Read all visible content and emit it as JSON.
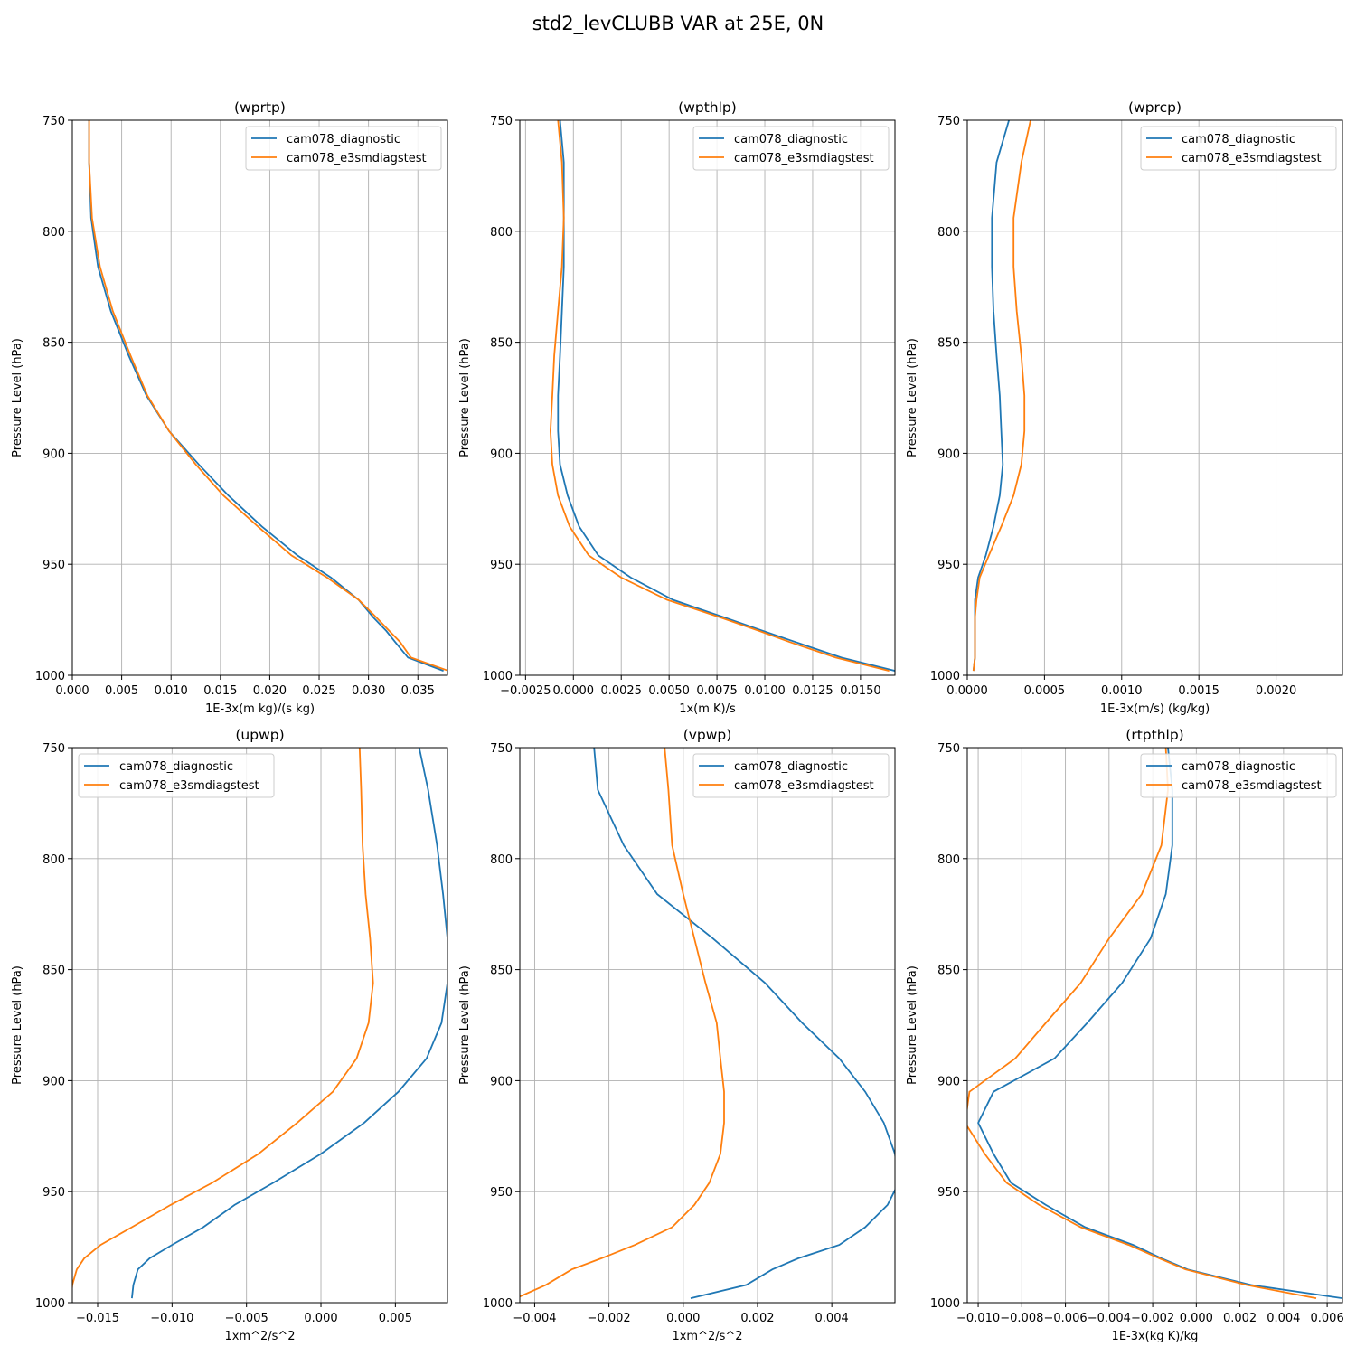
{
  "figure": {
    "title": "std2_levCLUBB VAR at 25E, 0N"
  },
  "colors": {
    "series0": "#1f77b4",
    "series1": "#ff7f0e",
    "grid": "#b0b0b0"
  },
  "chart_data": [
    {
      "type": "line",
      "title": "(wprtp)",
      "xlabel": "1E-3x(m kg)/(s kg)",
      "ylabel": "Pressure Level (hPa)",
      "xlim": [
        0,
        0.038
      ],
      "ylim": [
        1000,
        750
      ],
      "xticks": [
        0,
        0.005,
        0.01,
        0.015,
        0.02,
        0.025,
        0.03,
        0.035
      ],
      "xtick_labels": [
        "0.000",
        "0.005",
        "0.010",
        "0.015",
        "0.020",
        "0.025",
        "0.030",
        "0.035"
      ],
      "yticks": [
        750,
        800,
        850,
        900,
        950,
        1000
      ],
      "ytick_labels": [
        "750",
        "800",
        "850",
        "900",
        "950",
        "1000"
      ],
      "grid": true,
      "legend": "top-right",
      "y": [
        750,
        769,
        794,
        816,
        836,
        856,
        874,
        890,
        905,
        919,
        933,
        946,
        956,
        966,
        974,
        980,
        985,
        992,
        998
      ],
      "series": [
        {
          "name": "cam078_diagnostic",
          "values": [
            0.0017,
            0.0017,
            0.0019,
            0.0026,
            0.0039,
            0.0057,
            0.0075,
            0.0098,
            0.0128,
            0.0158,
            0.0192,
            0.0228,
            0.0262,
            0.029,
            0.0305,
            0.0318,
            0.0327,
            0.034,
            0.0376
          ]
        },
        {
          "name": "cam078_e3smdiagstest",
          "values": [
            0.0017,
            0.0017,
            0.002,
            0.0028,
            0.0041,
            0.0059,
            0.0076,
            0.0098,
            0.0125,
            0.0153,
            0.0188,
            0.0222,
            0.0258,
            0.029,
            0.0308,
            0.0321,
            0.0332,
            0.0343,
            0.0381
          ]
        }
      ]
    },
    {
      "type": "line",
      "title": "(wpthlp)",
      "xlabel": "1x(m K)/s",
      "ylabel": "Pressure Level (hPa)",
      "xlim": [
        -0.0028,
        0.0168
      ],
      "ylim": [
        1000,
        750
      ],
      "xticks": [
        -0.0025,
        0.0,
        0.0025,
        0.005,
        0.0075,
        0.01,
        0.0125,
        0.015
      ],
      "xtick_labels": [
        "−0.0025",
        "0.0000",
        "0.0025",
        "0.0050",
        "0.0075",
        "0.0100",
        "0.0125",
        "0.0150"
      ],
      "yticks": [
        750,
        800,
        850,
        900,
        950,
        1000
      ],
      "ytick_labels": [
        "750",
        "800",
        "850",
        "900",
        "950",
        "1000"
      ],
      "grid": true,
      "legend": "top-right",
      "y": [
        750,
        769,
        794,
        816,
        836,
        856,
        874,
        890,
        905,
        919,
        933,
        946,
        956,
        966,
        974,
        980,
        985,
        992,
        998
      ],
      "series": [
        {
          "name": "cam078_diagnostic",
          "values": [
            -0.0007,
            -0.0005,
            -0.0005,
            -0.0005,
            -0.0006,
            -0.0007,
            -0.0008,
            -0.0008,
            -0.0007,
            -0.0003,
            0.0003,
            0.0013,
            0.003,
            0.0052,
            0.0079,
            0.0099,
            0.0116,
            0.014,
            0.0168
          ]
        },
        {
          "name": "cam078_e3smdiagstest",
          "values": [
            -0.0008,
            -0.0006,
            -0.0005,
            -0.0006,
            -0.0008,
            -0.001,
            -0.0011,
            -0.0012,
            -0.0011,
            -0.0008,
            -0.0002,
            0.0008,
            0.0025,
            0.0049,
            0.0077,
            0.0097,
            0.0113,
            0.0137,
            0.0165
          ]
        }
      ]
    },
    {
      "type": "line",
      "title": "(wprcp)",
      "xlabel": "1E-3x(m/s) (kg/kg)",
      "ylabel": "Pressure Level (hPa)",
      "xlim": [
        0,
        0.00243
      ],
      "ylim": [
        1000,
        750
      ],
      "xticks": [
        0,
        0.0005,
        0.001,
        0.0015,
        0.002
      ],
      "xtick_labels": [
        "0.0000",
        "0.0005",
        "0.0010",
        "0.0015",
        "0.0020"
      ],
      "yticks": [
        750,
        800,
        850,
        900,
        950,
        1000
      ],
      "ytick_labels": [
        "750",
        "800",
        "850",
        "900",
        "950",
        "1000"
      ],
      "grid": true,
      "legend": "top-right",
      "y": [
        750,
        769,
        794,
        816,
        836,
        856,
        874,
        890,
        905,
        919,
        933,
        946,
        956,
        966,
        974,
        980,
        985,
        992,
        998
      ],
      "series": [
        {
          "name": "cam078_diagnostic",
          "values": [
            0.00027,
            0.00019,
            0.00016,
            0.00016,
            0.00017,
            0.00019,
            0.00021,
            0.00022,
            0.00023,
            0.00021,
            0.00017,
            0.00012,
            7e-05,
            5e-05,
            5e-05,
            5e-05,
            5e-05,
            5e-05,
            4e-05
          ]
        },
        {
          "name": "cam078_e3smdiagstest",
          "values": [
            0.00041,
            0.00035,
            0.0003,
            0.0003,
            0.00032,
            0.00035,
            0.00037,
            0.00037,
            0.00035,
            0.0003,
            0.00022,
            0.00014,
            8e-05,
            6e-05,
            5e-05,
            5e-05,
            5e-05,
            5e-05,
            4e-05
          ]
        }
      ]
    },
    {
      "type": "line",
      "title": "(upwp)",
      "xlabel": "1xm^2/s^2",
      "ylabel": "Pressure Level (hPa)",
      "xlim": [
        -0.0167,
        0.0085
      ],
      "ylim": [
        1000,
        750
      ],
      "xticks": [
        -0.015,
        -0.01,
        -0.005,
        0.0,
        0.005
      ],
      "xtick_labels": [
        "−0.015",
        "−0.010",
        "−0.005",
        "0.000",
        "0.005"
      ],
      "yticks": [
        750,
        800,
        850,
        900,
        950,
        1000
      ],
      "ytick_labels": [
        "750",
        "800",
        "850",
        "900",
        "950",
        "1000"
      ],
      "grid": true,
      "legend": "top-left",
      "y": [
        750,
        769,
        794,
        816,
        836,
        856,
        874,
        890,
        905,
        919,
        933,
        946,
        956,
        966,
        974,
        980,
        985,
        992,
        998
      ],
      "series": [
        {
          "name": "cam078_diagnostic",
          "values": [
            0.0066,
            0.0072,
            0.0078,
            0.0082,
            0.0085,
            0.0085,
            0.0081,
            0.0071,
            0.0052,
            0.0029,
            0.0,
            -0.0032,
            -0.0058,
            -0.0079,
            -0.01,
            -0.0115,
            -0.0123,
            -0.0126,
            -0.0127
          ]
        },
        {
          "name": "cam078_e3smdiagstest",
          "values": [
            0.0026,
            0.0027,
            0.0028,
            0.003,
            0.0033,
            0.0035,
            0.0032,
            0.0024,
            0.0008,
            -0.0016,
            -0.0042,
            -0.0073,
            -0.0101,
            -0.0127,
            -0.0148,
            -0.0159,
            -0.0164,
            -0.0167,
            -0.0168
          ]
        }
      ]
    },
    {
      "type": "line",
      "title": "(vpwp)",
      "xlabel": "1xm^2/s^2",
      "ylabel": "Pressure Level (hPa)",
      "xlim": [
        -0.0044,
        0.0057
      ],
      "ylim": [
        1000,
        750
      ],
      "xticks": [
        -0.004,
        -0.002,
        0.0,
        0.002,
        0.004
      ],
      "xtick_labels": [
        "−0.004",
        "−0.002",
        "0.000",
        "0.002",
        "0.004"
      ],
      "yticks": [
        750,
        800,
        850,
        900,
        950,
        1000
      ],
      "ytick_labels": [
        "750",
        "800",
        "850",
        "900",
        "950",
        "1000"
      ],
      "grid": true,
      "legend": "top-right",
      "y": [
        750,
        769,
        794,
        816,
        836,
        856,
        874,
        890,
        905,
        919,
        933,
        946,
        956,
        966,
        974,
        980,
        985,
        992,
        998
      ],
      "series": [
        {
          "name": "cam078_diagnostic",
          "values": [
            -0.0024,
            -0.0023,
            -0.0016,
            -0.0007,
            0.0008,
            0.0022,
            0.0032,
            0.0042,
            0.0049,
            0.0054,
            0.0057,
            0.0058,
            0.0055,
            0.0049,
            0.0042,
            0.0031,
            0.0024,
            0.0017,
            0.0002
          ]
        },
        {
          "name": "cam078_e3smdiagstest",
          "values": [
            -0.0005,
            -0.0004,
            -0.0003,
            0.0,
            0.0003,
            0.0006,
            0.0009,
            0.001,
            0.0011,
            0.0011,
            0.001,
            0.0007,
            0.0003,
            -0.0003,
            -0.0013,
            -0.0022,
            -0.003,
            -0.0037,
            -0.0045
          ]
        }
      ]
    },
    {
      "type": "line",
      "title": "(rtpthlp)",
      "xlabel": "1E-3x(kg K)/kg",
      "ylabel": "Pressure Level (hPa)",
      "xlim": [
        -0.0105,
        0.0067
      ],
      "ylim": [
        1000,
        750
      ],
      "xticks": [
        -0.01,
        -0.008,
        -0.006,
        -0.004,
        -0.002,
        0.0,
        0.002,
        0.004,
        0.006
      ],
      "xtick_labels": [
        "−0.010",
        "−0.008",
        "−0.006",
        "−0.004",
        "−0.002",
        "0.000",
        "0.002",
        "0.004",
        "0.006"
      ],
      "yticks": [
        750,
        800,
        850,
        900,
        950,
        1000
      ],
      "ytick_labels": [
        "750",
        "800",
        "850",
        "900",
        "950",
        "1000"
      ],
      "grid": true,
      "legend": "top-right",
      "y": [
        750,
        769,
        794,
        816,
        836,
        856,
        874,
        890,
        905,
        919,
        933,
        946,
        956,
        966,
        974,
        980,
        985,
        992,
        998
      ],
      "series": [
        {
          "name": "cam078_diagnostic",
          "values": [
            -0.0013,
            -0.0011,
            -0.0011,
            -0.0014,
            -0.0021,
            -0.0034,
            -0.005,
            -0.0065,
            -0.0093,
            -0.01,
            -0.0093,
            -0.0085,
            -0.0069,
            -0.0051,
            -0.0029,
            -0.0016,
            -0.0004,
            0.0025,
            0.0067
          ]
        },
        {
          "name": "cam078_e3smdiagstest",
          "values": [
            -0.0014,
            -0.0013,
            -0.0016,
            -0.0025,
            -0.004,
            -0.0053,
            -0.0069,
            -0.0083,
            -0.0104,
            -0.0106,
            -0.0097,
            -0.0087,
            -0.0072,
            -0.0053,
            -0.0031,
            -0.0017,
            -0.0005,
            0.0023,
            0.0055
          ]
        }
      ]
    }
  ]
}
